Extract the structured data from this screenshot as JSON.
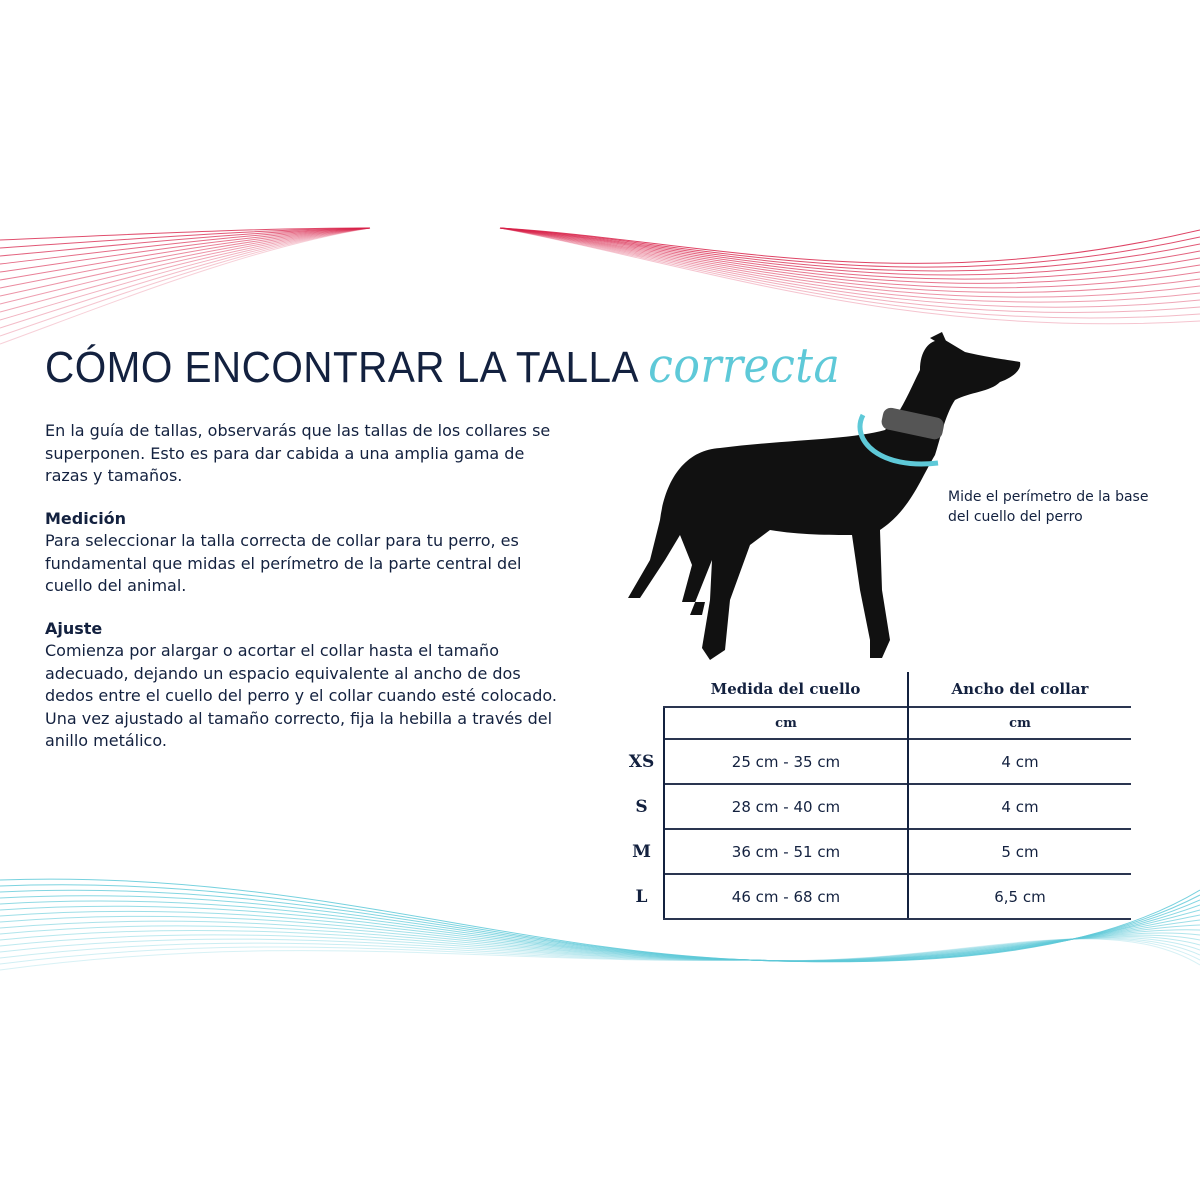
{
  "title": {
    "main": "CÓMO ENCONTRAR LA TALLA",
    "accent": "correcta"
  },
  "intro": "En la guía de tallas, observarás que las tallas de los collares se superponen. Esto es para dar cabida a una amplia gama de razas y tamaños.",
  "sections": [
    {
      "heading": "Medición",
      "text": "Para seleccionar la talla correcta de collar para tu perro, es fundamental que midas el perímetro de la parte central del cuello del animal."
    },
    {
      "heading": "Ajuste",
      "text": "Comienza por alargar o acortar el collar hasta el tamaño adecuado, dejando un espacio equivalente al ancho de dos dedos entre el cuello del perro y el collar cuando esté colocado. Una vez ajustado al tamaño correcto, fija la hebilla a través del anillo metálico."
    }
  ],
  "dog_note": "Mide el perímetro de la base del cuello del perro",
  "table": {
    "headers": [
      "Medida del cuello",
      "Ancho del collar"
    ],
    "units": [
      "cm",
      "cm"
    ],
    "rows": [
      {
        "size": "XS",
        "neck": "25 cm - 35 cm",
        "width": "4 cm"
      },
      {
        "size": "S",
        "neck": "28 cm - 40 cm",
        "width": "4 cm"
      },
      {
        "size": "M",
        "neck": "36 cm - 51 cm",
        "width": "5 cm"
      },
      {
        "size": "L",
        "neck": "46 cm - 68 cm",
        "width": "6,5 cm"
      }
    ]
  },
  "colors": {
    "navy": "#13213f",
    "cyan": "#5ec9d8",
    "red": "#d8234a"
  }
}
